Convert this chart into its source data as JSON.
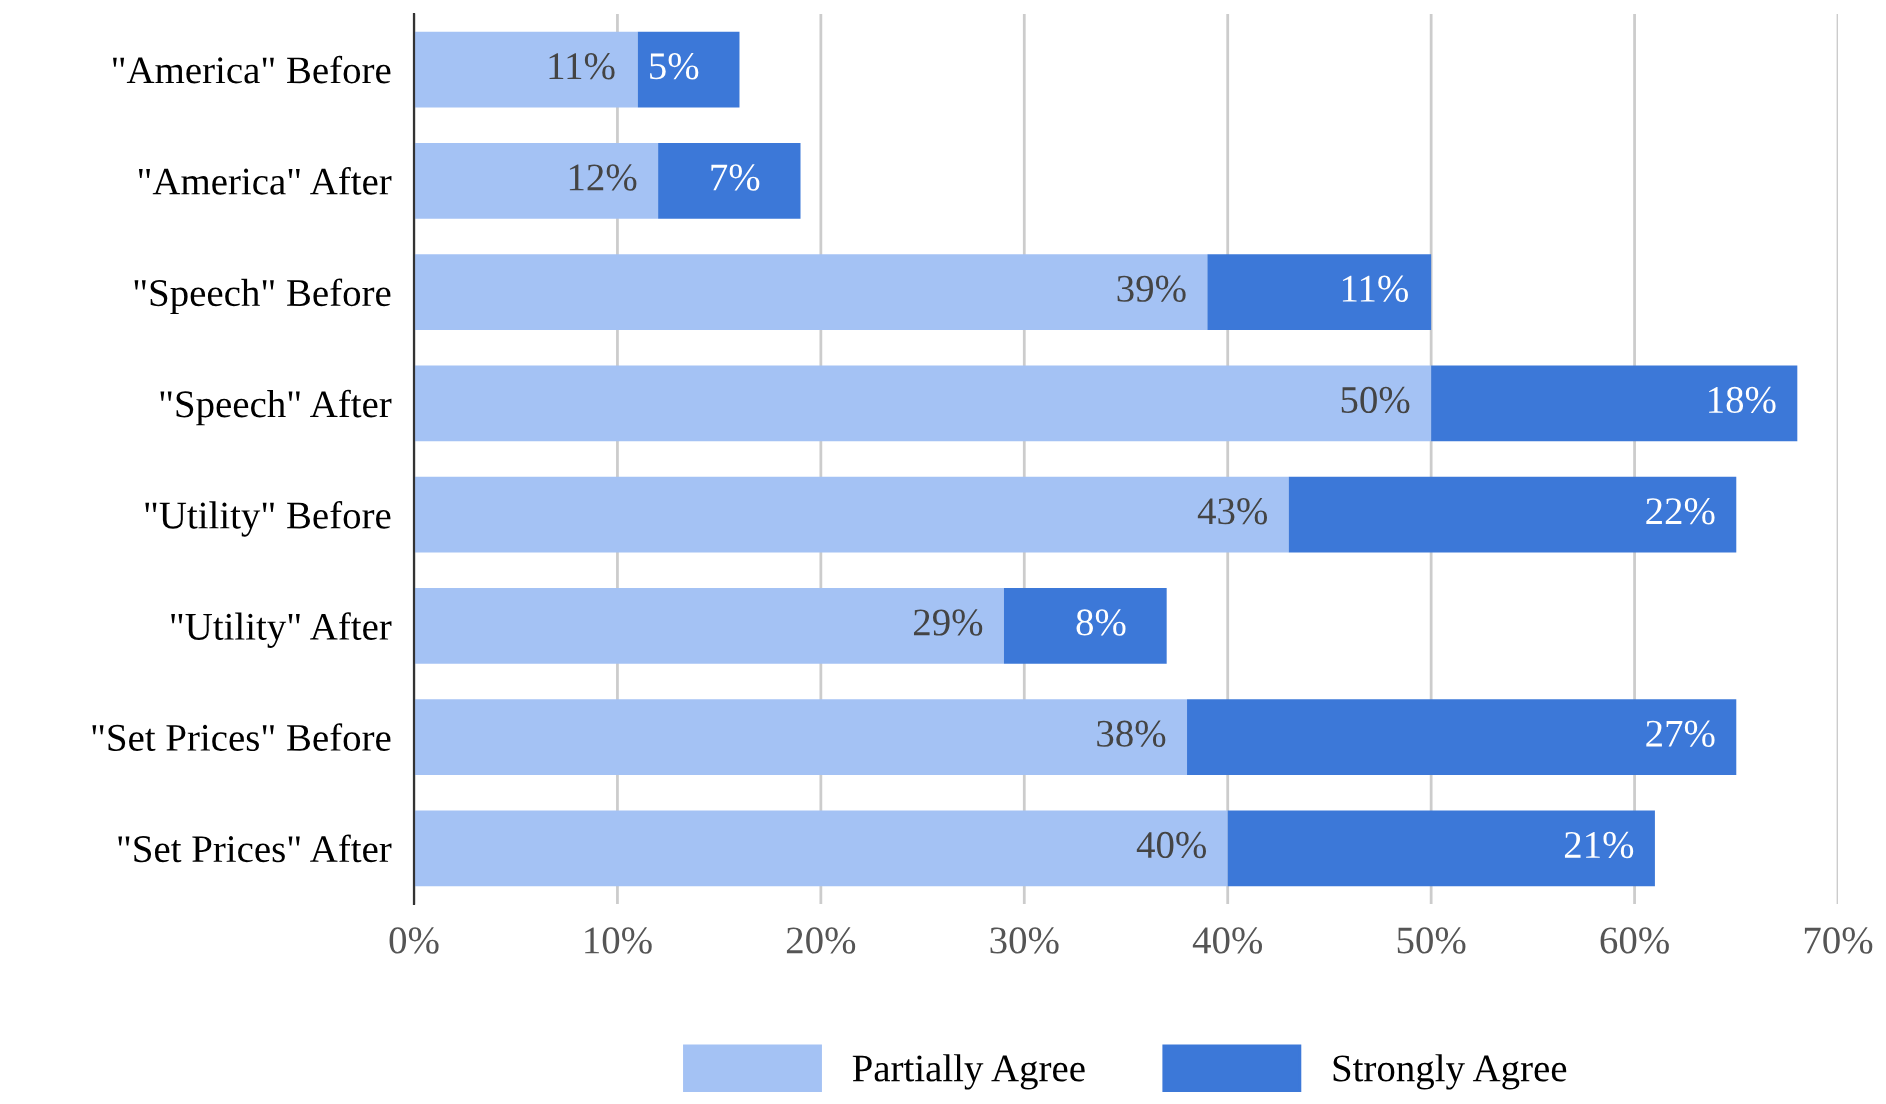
{
  "chart_data": {
    "type": "bar",
    "orientation": "horizontal",
    "stacked": true,
    "categories": [
      "\"America\" Before",
      "\"America\" After",
      "\"Speech\" Before",
      "\"Speech\" After",
      "\"Utility\" Before",
      "\"Utility\" After",
      "\"Set Prices\" Before",
      "\"Set Prices\" After"
    ],
    "series": [
      {
        "name": "Partially Agree",
        "color": "#a4c2f4",
        "values": [
          11,
          12,
          39,
          50,
          43,
          29,
          38,
          40
        ],
        "value_labels": [
          "11%",
          "12%",
          "39%",
          "50%",
          "43%",
          "29%",
          "38%",
          "40%"
        ]
      },
      {
        "name": "Strongly Agree",
        "color": "#3c78d8",
        "values": [
          5,
          7,
          11,
          18,
          22,
          8,
          27,
          21
        ],
        "value_labels": [
          "5%",
          "7%",
          "11%",
          "18%",
          "22%",
          "8%",
          "27%",
          "21%"
        ]
      }
    ],
    "xlim": [
      0,
      70
    ],
    "xticks": [
      {
        "value": 0,
        "label": "0%"
      },
      {
        "value": 10,
        "label": "10%"
      },
      {
        "value": 20,
        "label": "20%"
      },
      {
        "value": 30,
        "label": "30%"
      },
      {
        "value": 40,
        "label": "40%"
      },
      {
        "value": 50,
        "label": "50%"
      },
      {
        "value": 60,
        "label": "60%"
      },
      {
        "value": 70,
        "label": "70%"
      }
    ],
    "grid": "x",
    "legend": "bottom"
  }
}
